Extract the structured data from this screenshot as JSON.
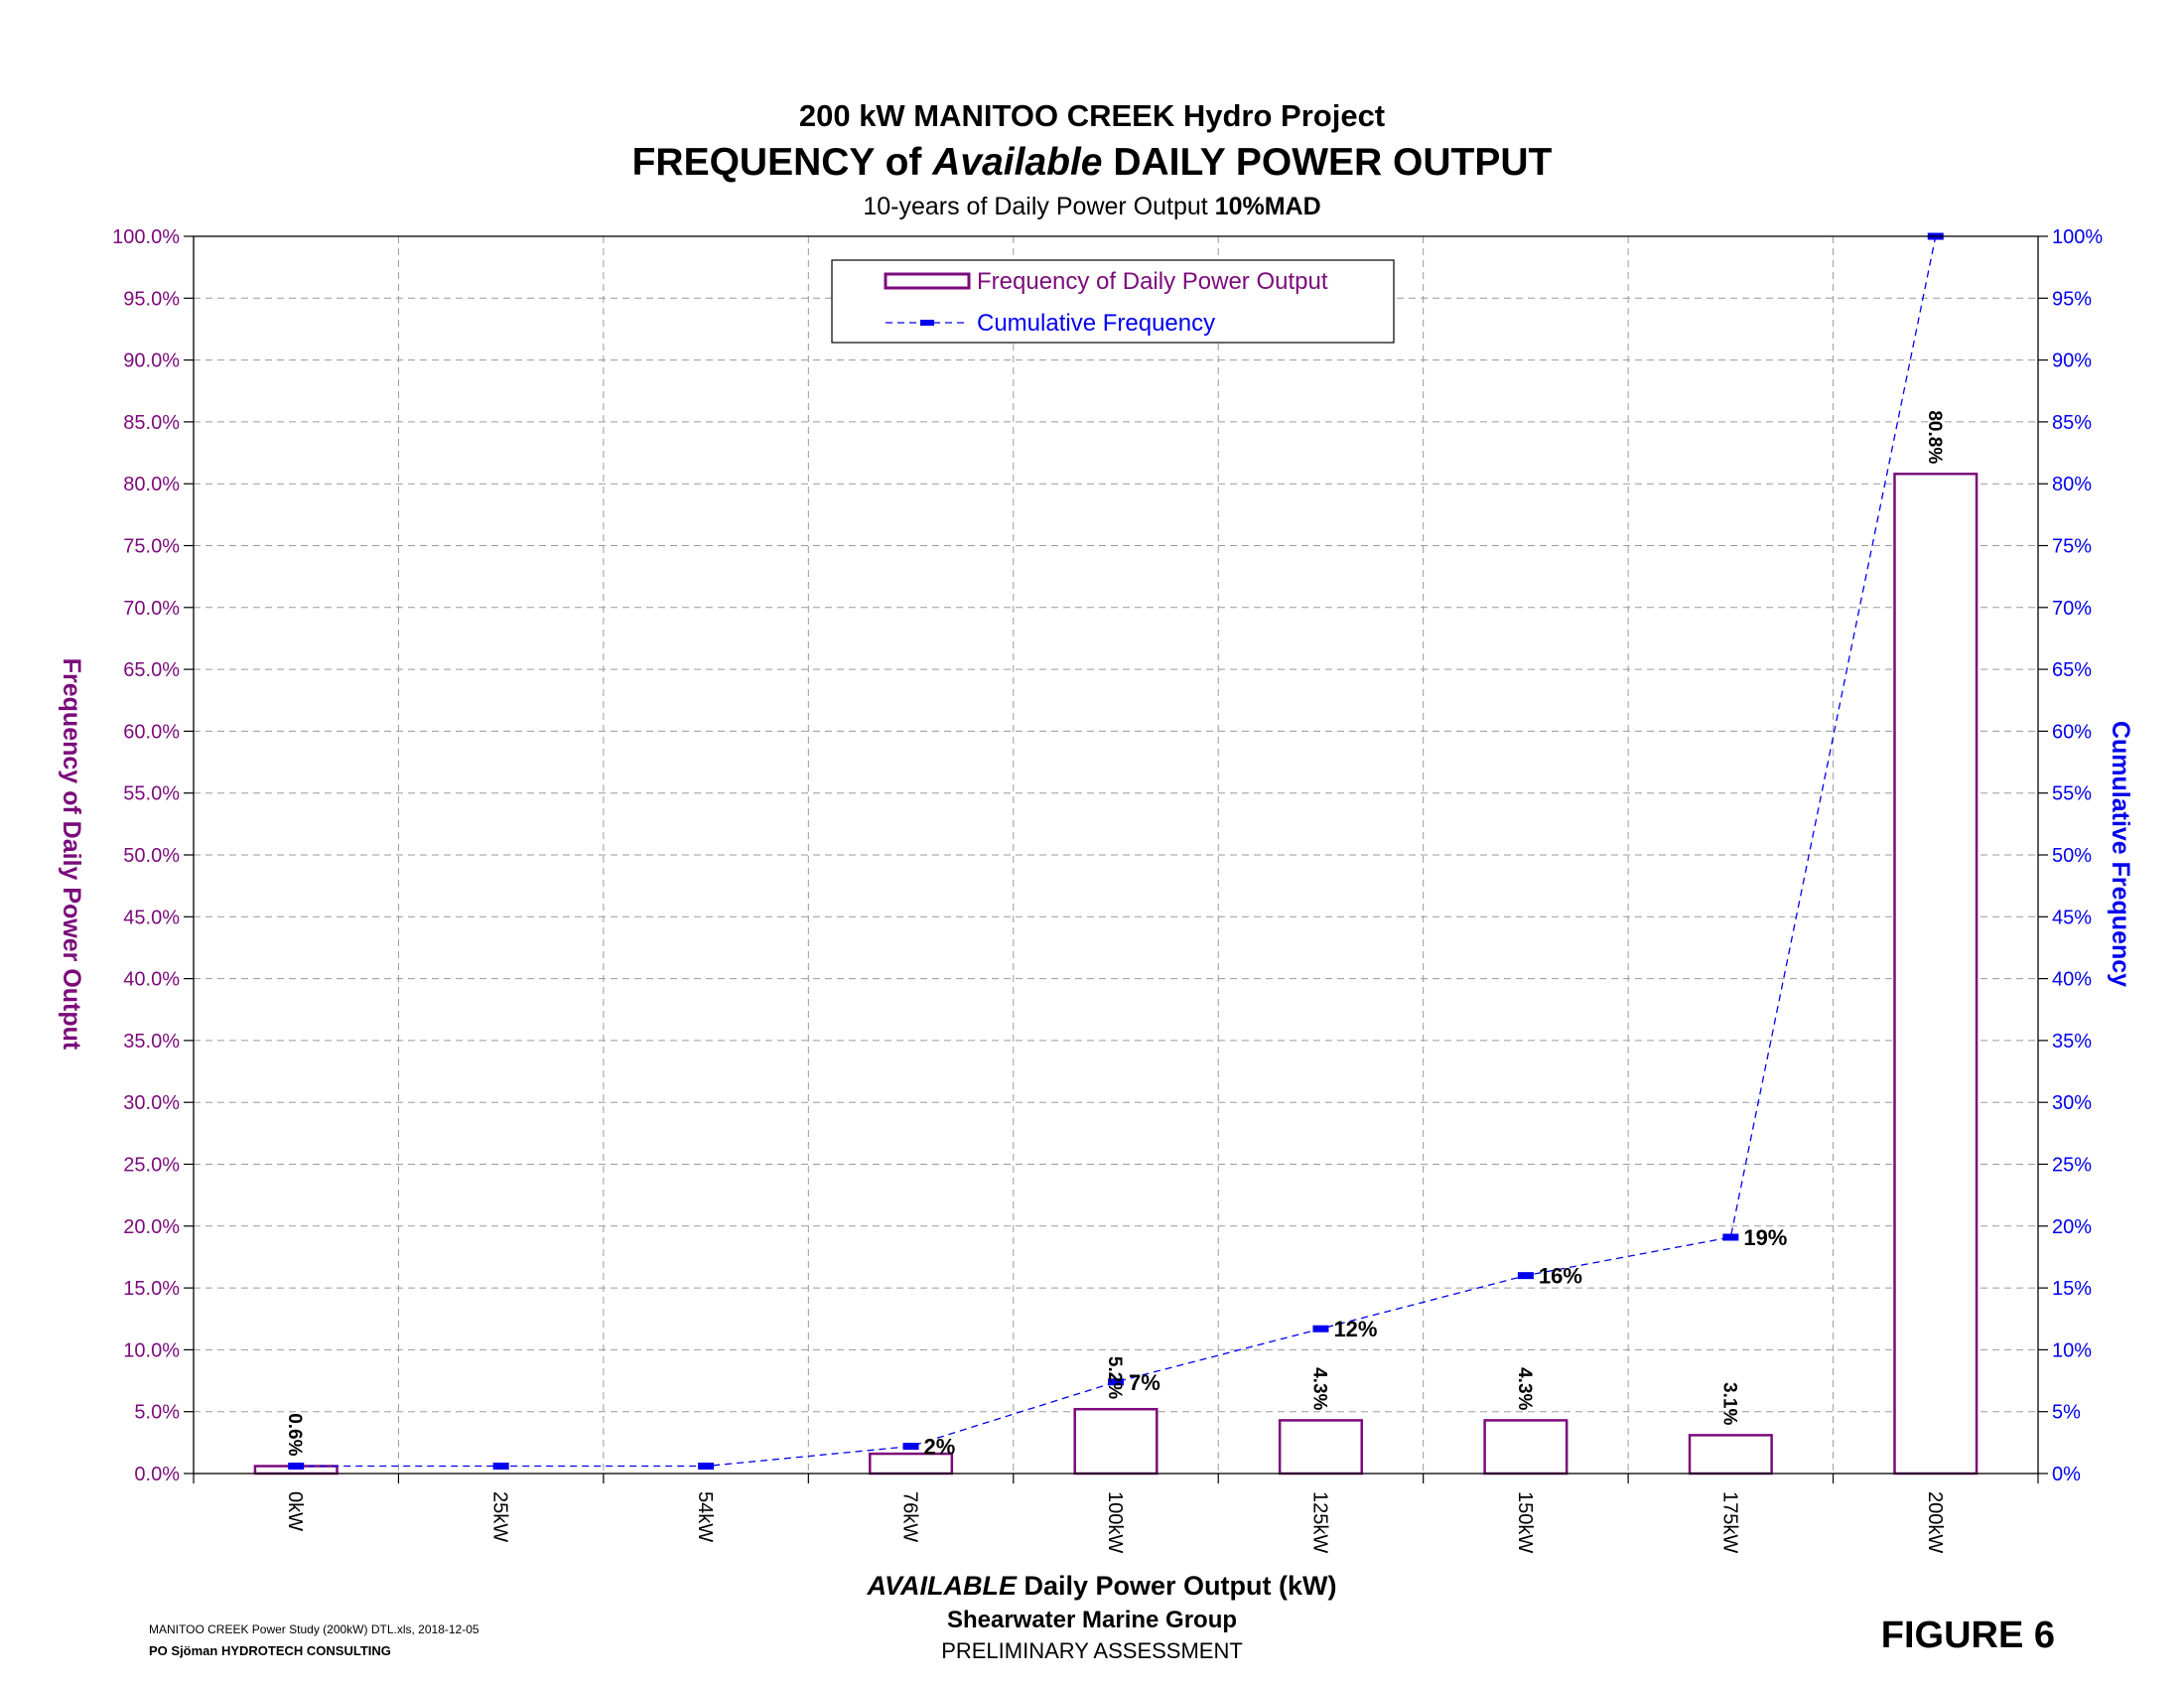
{
  "chart_data": {
    "type": "bar",
    "title": "200 kW MANITOO CREEK Hydro Project",
    "subtitle_parts": [
      "FREQUENCY of ",
      "Available",
      " DAILY POWER OUTPUT"
    ],
    "subtitle2_parts": [
      "10-years of Daily Power Output ",
      "10%MAD"
    ],
    "xlabel_parts": [
      "AVAILABLE",
      " Daily Power Output (kW)"
    ],
    "ylabel": "Frequency of Daily Power Output",
    "y2label": "Cumulative Frequency",
    "categories": [
      "0kW",
      "25kW",
      "54kW",
      "76kW",
      "100kW",
      "125kW",
      "150kW",
      "175kW",
      "200kW"
    ],
    "ylim": [
      0,
      100
    ],
    "y2lim": [
      0,
      100
    ],
    "yticks": [
      "0.0%",
      "5.0%",
      "10.0%",
      "15.0%",
      "20.0%",
      "25.0%",
      "30.0%",
      "35.0%",
      "40.0%",
      "45.0%",
      "50.0%",
      "55.0%",
      "60.0%",
      "65.0%",
      "70.0%",
      "75.0%",
      "80.0%",
      "85.0%",
      "90.0%",
      "95.0%",
      "100.0%"
    ],
    "y2ticks": [
      "0%",
      "5%",
      "10%",
      "15%",
      "20%",
      "25%",
      "30%",
      "35%",
      "40%",
      "45%",
      "50%",
      "55%",
      "60%",
      "65%",
      "70%",
      "75%",
      "80%",
      "85%",
      "90%",
      "95%",
      "100%"
    ],
    "series": [
      {
        "name": "Frequency of Daily Power Output",
        "kind": "bar",
        "color": "#7b0a7b",
        "values": [
          0.6,
          0,
          0,
          1.6,
          5.2,
          4.3,
          4.3,
          3.1,
          80.8
        ],
        "labels": [
          "0.6%",
          "",
          "",
          "",
          "5.2%",
          "4.3%",
          "4.3%",
          "3.1%",
          "80.8%"
        ]
      },
      {
        "name": "Cumulative Frequency",
        "kind": "line",
        "color": "#0000ee",
        "values": [
          0.6,
          0.6,
          0.6,
          2.2,
          7.4,
          11.7,
          16.0,
          19.1,
          100
        ],
        "labels": [
          "",
          "",
          "",
          "2%",
          "7%",
          "12%",
          "16%",
          "19%",
          ""
        ]
      }
    ],
    "legend_position": "top-center",
    "grid": true
  },
  "footer": {
    "file": "MANITOO CREEK Power Study (200kW) DTL.xls, 2018-12-05",
    "author": "PO Sjöman HYDROTECH CONSULTING",
    "org": "Shearwater Marine Group",
    "status": "PRELIMINARY ASSESSMENT",
    "figure": "FIGURE 6"
  }
}
